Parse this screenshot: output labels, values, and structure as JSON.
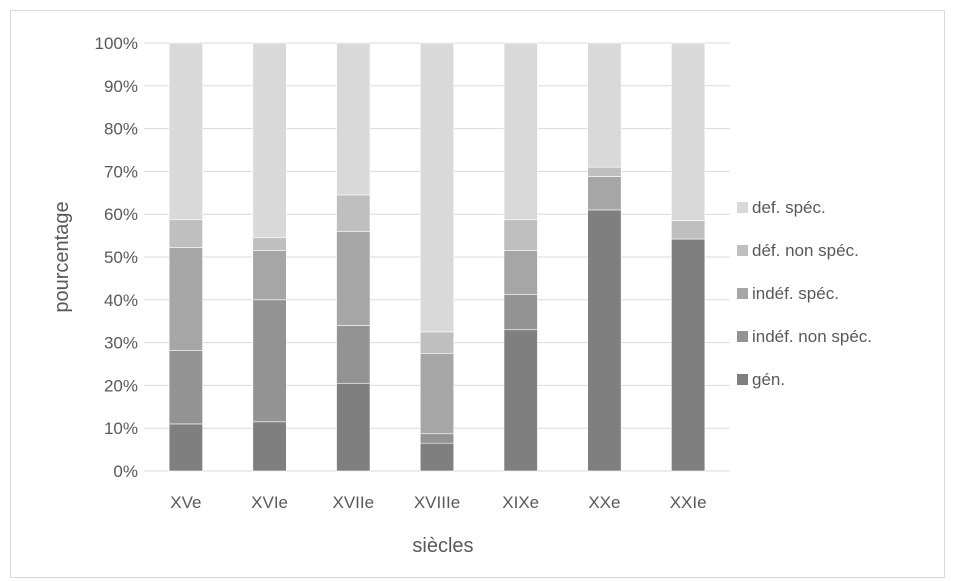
{
  "chart_data": {
    "type": "bar",
    "stacked": true,
    "percent": true,
    "categories": [
      "XVe",
      "XVIe",
      "XVIIe",
      "XVIIIe",
      "XIXe",
      "XXe",
      "XXIe"
    ],
    "series": [
      {
        "name": "gén.",
        "color": "#7f7f7f",
        "values": [
          11,
          11.5,
          20.5,
          6.5,
          33,
          61,
          54.2
        ]
      },
      {
        "name": "indéf. non spéc.",
        "color": "#939393",
        "values": [
          17.2,
          28.5,
          13.5,
          2.2,
          8.2,
          0,
          0
        ]
      },
      {
        "name": "indéf. spéc.",
        "color": "#a6a6a6",
        "values": [
          24,
          11.5,
          22,
          18.8,
          10.3,
          7.8,
          0
        ]
      },
      {
        "name": "déf. non spéc.",
        "color": "#bfbfbf",
        "values": [
          6.5,
          3,
          8.5,
          5,
          7.2,
          2.2,
          4.3
        ]
      },
      {
        "name": "def. spéc.",
        "color": "#d9d9d9",
        "values": [
          41.3,
          45.5,
          35.5,
          67.5,
          41.3,
          29,
          41.5
        ]
      }
    ],
    "legend_order": [
      "def. spéc.",
      "déf. non spéc.",
      "indéf. spéc.",
      "indéf. non spéc.",
      "gén."
    ],
    "xlabel": "siècles",
    "ylabel": "pourcentage",
    "ylim": [
      0,
      100
    ],
    "yticks": [
      "0%",
      "10%",
      "20%",
      "30%",
      "40%",
      "50%",
      "60%",
      "70%",
      "80%",
      "90%",
      "100%"
    ],
    "grid": true,
    "legend_position": "right"
  }
}
